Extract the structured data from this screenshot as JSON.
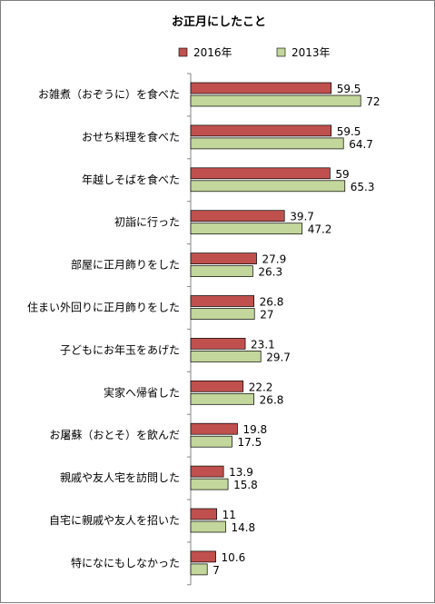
{
  "chart_data": {
    "type": "bar",
    "orientation": "horizontal",
    "title": "お正月にしたこと",
    "categories": [
      "お雑煮（おぞうに）を食べた",
      "おせち料理を食べた",
      "年越しそばを食べた",
      "初詣に行った",
      "部屋に正月飾りをした",
      "住まい外回りに正月飾りをした",
      "子どもにお年玉をあげた",
      "実家へ帰省した",
      "お屠蘇（おとそ）を飲んだ",
      "親戚や友人宅を訪問した",
      "自宅に親戚や友人を招いた",
      "特になにもしなかった"
    ],
    "series": [
      {
        "name": "2016年",
        "color": "#c0504d",
        "values": [
          59.5,
          59.5,
          59,
          39.7,
          27.9,
          26.8,
          23.1,
          22.2,
          19.8,
          13.9,
          11,
          10.6
        ]
      },
      {
        "name": "2013年",
        "color": "#c3d69b",
        "values": [
          72,
          64.7,
          65.3,
          47.2,
          26.3,
          27,
          29.7,
          26.8,
          17.5,
          15.8,
          14.8,
          7
        ]
      }
    ],
    "legend_position": "top",
    "grid": false,
    "xlim": [
      0,
      100
    ]
  }
}
